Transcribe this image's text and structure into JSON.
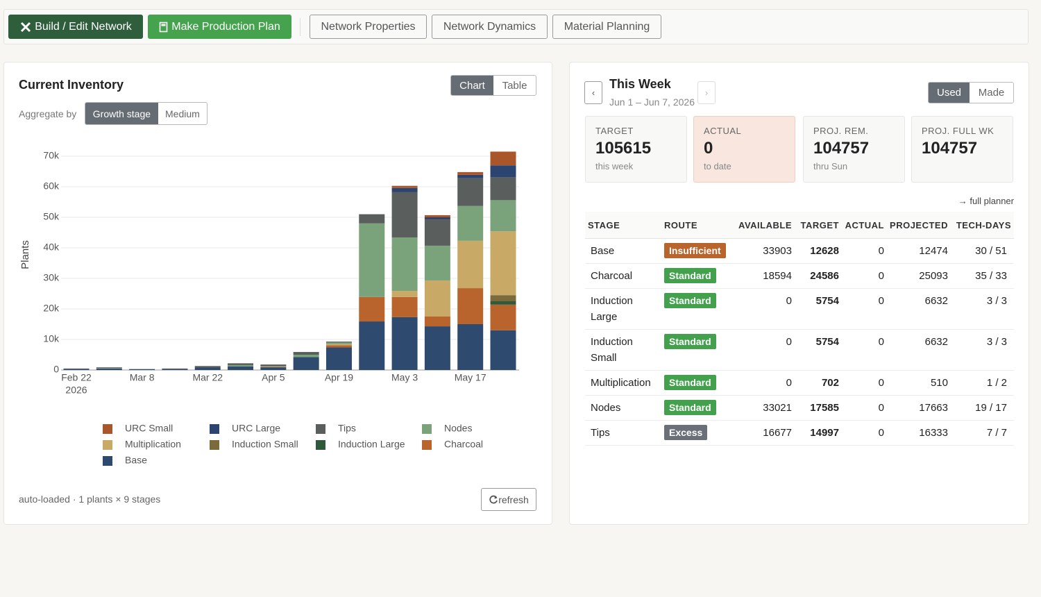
{
  "toolbar": {
    "buttons": [
      "Build / Edit Network",
      "Make Production Plan",
      "Network Properties",
      "Network Dynamics",
      "Material Planning"
    ]
  },
  "inventory": {
    "title": "Current Inventory",
    "view_toggle": [
      "Chart",
      "Table"
    ],
    "aggregate_label": "Aggregate by",
    "aggregate_options": [
      "Growth stage",
      "Medium"
    ],
    "footer": "auto-loaded · 1 plants × 9 stages",
    "refresh": "refresh"
  },
  "chart_data": {
    "type": "stacked_bar",
    "y_label": "Plants",
    "categories": [
      "Feb 22",
      null,
      "Mar 8",
      null,
      "Mar 22",
      null,
      "Apr 5",
      null,
      "Apr 19",
      null,
      "May 3",
      null,
      "May 17",
      null
    ],
    "first_category_year": "2026",
    "ylim": [
      0,
      72000
    ],
    "yticks": [
      0,
      {
        "value": 10000,
        "label": "10k"
      },
      {
        "value": 20000,
        "label": "20k"
      },
      {
        "value": 30000,
        "label": "30k"
      },
      {
        "value": 40000,
        "label": "40k"
      },
      {
        "value": 50000,
        "label": "50k"
      },
      {
        "value": 60000,
        "label": "60k"
      },
      {
        "value": 70000,
        "label": "70k"
      }
    ],
    "grid": true,
    "series": [
      {
        "name": "URC Small",
        "color": "#a9572a",
        "values": [
          0,
          0,
          0,
          0,
          0,
          0,
          0,
          0,
          0,
          0,
          700,
          700,
          900,
          4500
        ]
      },
      {
        "name": "URC Large",
        "color": "#2c4570",
        "values": [
          0,
          0,
          0,
          0,
          0,
          0,
          0,
          0,
          0,
          0,
          1400,
          700,
          1100,
          3900
        ]
      },
      {
        "name": "Tips",
        "color": "#5a5e5d",
        "values": [
          200,
          200,
          0,
          200,
          500,
          600,
          600,
          900,
          300,
          3000,
          14800,
          8600,
          9100,
          7500
        ]
      },
      {
        "name": "Nodes",
        "color": "#7ba37b",
        "values": [
          0,
          200,
          0,
          0,
          0,
          400,
          0,
          800,
          500,
          24100,
          17500,
          11400,
          11400,
          10200
        ]
      },
      {
        "name": "Multiplication",
        "color": "#c9a966",
        "values": [
          0,
          0,
          0,
          0,
          0,
          0,
          300,
          0,
          400,
          0,
          2000,
          11800,
          15500,
          20900
        ]
      },
      {
        "name": "Induction Small",
        "color": "#7b6a3c",
        "values": [
          0,
          0,
          0,
          0,
          0,
          0,
          0,
          0,
          0,
          0,
          0,
          0,
          0,
          2000
        ]
      },
      {
        "name": "Induction Large",
        "color": "#2e5a3b",
        "values": [
          0,
          0,
          0,
          0,
          0,
          0,
          0,
          0,
          0,
          0,
          0,
          0,
          0,
          1100
        ]
      },
      {
        "name": "Charcoal",
        "color": "#b8642c",
        "values": [
          0,
          0,
          0,
          0,
          0,
          0,
          0,
          0,
          700,
          8000,
          6600,
          3200,
          11800,
          8400
        ]
      },
      {
        "name": "Base",
        "color": "#2f4a6f",
        "values": [
          300,
          500,
          300,
          300,
          800,
          1200,
          900,
          4200,
          7400,
          15900,
          17300,
          14300,
          15000,
          13000
        ]
      }
    ]
  },
  "week": {
    "prev": "‹",
    "next": "›",
    "title": "This Week",
    "range": "Jun 1 – Jun 7, 2026",
    "toggle": [
      "Used",
      "Made"
    ],
    "stats": [
      {
        "label": "TARGET",
        "value": 105615,
        "note": "this week"
      },
      {
        "label": "ACTUAL",
        "value": 0,
        "note": "to date"
      },
      {
        "label": "PROJ. REM.",
        "value": 104757,
        "note": "thru Sun"
      },
      {
        "label": "PROJ. FULL WK",
        "value": 104757
      }
    ],
    "planner_link": "→ full planner",
    "table": {
      "columns": [
        "STAGE",
        "ROUTE",
        "AVAILABLE",
        "TARGET",
        "ACTUAL",
        "PROJECTED",
        "TECH-DAYS"
      ],
      "rows": [
        {
          "stage": "Base",
          "route": "Insufficient",
          "route_color": "#b8642c",
          "available": 33903,
          "target": 12628,
          "actual": 0,
          "projected": 12474,
          "tech_days": "30 / 51"
        },
        {
          "stage": "Charcoal",
          "route": "Standard",
          "route_color": "#43a04d",
          "available": 18594,
          "target": 24586,
          "actual": 0,
          "projected": 25093,
          "tech_days": "35 / 33"
        },
        {
          "stage": "Induction Large",
          "route": "Standard",
          "route_color": "#43a04d",
          "available": 0,
          "target": 5754,
          "actual": 0,
          "projected": 6632,
          "tech_days": "3 / 3"
        },
        {
          "stage": "Induction Small",
          "route": "Standard",
          "route_color": "#43a04d",
          "available": 0,
          "target": 5754,
          "actual": 0,
          "projected": 6632,
          "tech_days": "3 / 3"
        },
        {
          "stage": "Multiplication",
          "route": "Standard",
          "route_color": "#43a04d",
          "available": 0,
          "target": 702,
          "actual": 0,
          "projected": 510,
          "tech_days": "1 / 2"
        },
        {
          "stage": "Nodes",
          "route": "Standard",
          "route_color": "#43a04d",
          "available": 33021,
          "target": 17585,
          "actual": 0,
          "projected": 17663,
          "tech_days": "19 / 17"
        },
        {
          "stage": "Tips",
          "route": "Excess",
          "route_color": "#6b7078",
          "available": 16677,
          "target": 14997,
          "actual": 0,
          "projected": 16333,
          "tech_days": "7 / 7"
        }
      ]
    }
  }
}
